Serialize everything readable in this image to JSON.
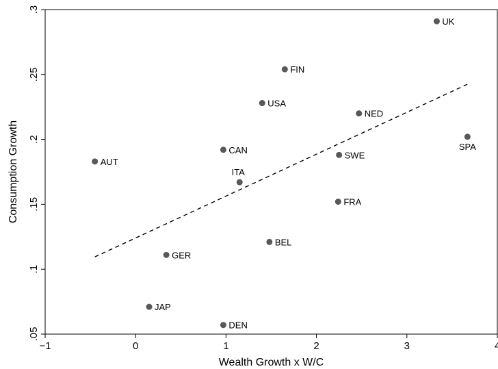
{
  "chart_data": {
    "type": "scatter",
    "title": "",
    "xlabel": "Wealth Growth x W/C",
    "ylabel": "Consumption Growth",
    "xlim": [
      -1,
      4
    ],
    "ylim": [
      0.05,
      0.3
    ],
    "xticks": [
      -1,
      0,
      1,
      2,
      3,
      4
    ],
    "xtick_labels": [
      "−1",
      "0",
      "1",
      "2",
      "3",
      "4"
    ],
    "yticks": [
      0.05,
      0.1,
      0.15,
      0.2,
      0.25,
      0.3
    ],
    "ytick_labels": [
      ".05",
      ".1",
      ".15",
      ".2",
      ".25",
      ".3"
    ],
    "grid": false,
    "marker_color": "#595959",
    "points": [
      {
        "label": "UK",
        "x": 3.33,
        "y": 0.291
      },
      {
        "label": "FIN",
        "x": 1.65,
        "y": 0.254
      },
      {
        "label": "USA",
        "x": 1.4,
        "y": 0.228
      },
      {
        "label": "NED",
        "x": 2.47,
        "y": 0.22
      },
      {
        "label": "SPA",
        "x": 3.67,
        "y": 0.202
      },
      {
        "label": "CAN",
        "x": 0.97,
        "y": 0.192
      },
      {
        "label": "SWE",
        "x": 2.25,
        "y": 0.188
      },
      {
        "label": "AUT",
        "x": -0.45,
        "y": 0.183
      },
      {
        "label": "ITA",
        "x": 1.15,
        "y": 0.167
      },
      {
        "label": "FRA",
        "x": 2.24,
        "y": 0.152
      },
      {
        "label": "BEL",
        "x": 1.48,
        "y": 0.121
      },
      {
        "label": "GER",
        "x": 0.34,
        "y": 0.111
      },
      {
        "label": "JAP",
        "x": 0.15,
        "y": 0.071
      },
      {
        "label": "DEN",
        "x": 0.97,
        "y": 0.057
      }
    ],
    "fit_line": {
      "style": "dashed",
      "x": [
        -0.45,
        3.67
      ],
      "y": [
        0.1095,
        0.2425
      ]
    }
  }
}
